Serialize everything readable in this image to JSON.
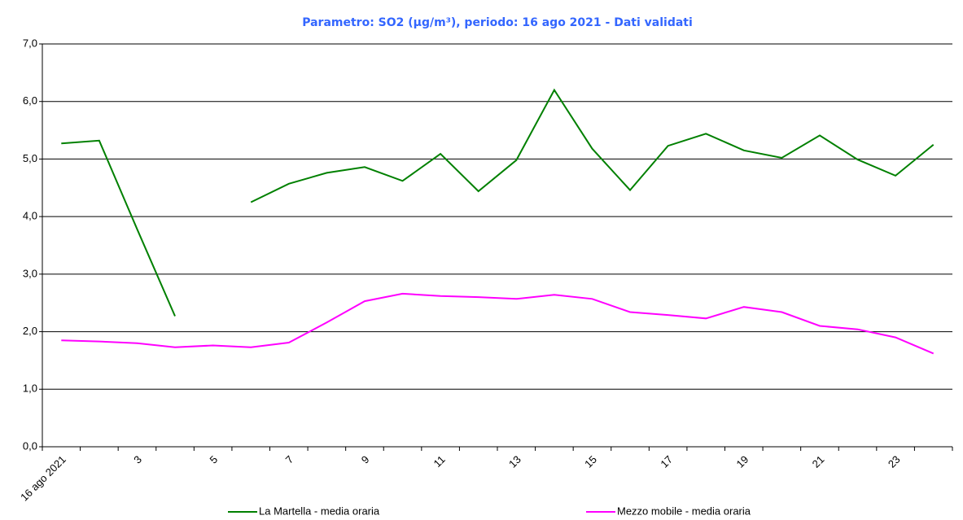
{
  "chart_data": {
    "type": "line",
    "title": "Parametro: SO2 (µg/m³), periodo: 16 ago 2021 - Dati validati",
    "categories": [
      "16 ago 2021",
      null,
      "3",
      null,
      "5",
      null,
      "7",
      null,
      "9",
      null,
      "11",
      null,
      "13",
      null,
      "15",
      null,
      "17",
      null,
      "19",
      null,
      "21",
      null,
      "23",
      null
    ],
    "series": [
      {
        "name": "La Martella - media oraria",
        "color": "#008000",
        "values": [
          5.27,
          5.32,
          3.78,
          2.27,
          null,
          4.25,
          4.57,
          4.76,
          4.86,
          4.62,
          5.09,
          4.44,
          4.98,
          6.2,
          5.18,
          4.46,
          5.23,
          5.44,
          5.15,
          5.02,
          5.41,
          4.99,
          4.71,
          5.25
        ]
      },
      {
        "name": "Mezzo mobile - media oraria",
        "color": "#ff00ff",
        "values": [
          1.85,
          1.83,
          1.8,
          1.73,
          1.76,
          1.73,
          1.81,
          2.16,
          2.53,
          2.66,
          2.62,
          2.6,
          2.57,
          2.64,
          2.57,
          2.34,
          2.29,
          2.23,
          2.43,
          2.34,
          2.1,
          2.04,
          1.9,
          1.62
        ]
      }
    ],
    "ylim": [
      0,
      7
    ],
    "yticks": [
      {
        "value": 0,
        "label": "0,0"
      },
      {
        "value": 1,
        "label": "1,0"
      },
      {
        "value": 2,
        "label": "2,0"
      },
      {
        "value": 3,
        "label": "3,0"
      },
      {
        "value": 4,
        "label": "4,0"
      },
      {
        "value": 5,
        "label": "5,0"
      },
      {
        "value": 6,
        "label": "6,0"
      },
      {
        "value": 7,
        "label": "7,0"
      }
    ],
    "grid": true,
    "legend": "bottom"
  }
}
